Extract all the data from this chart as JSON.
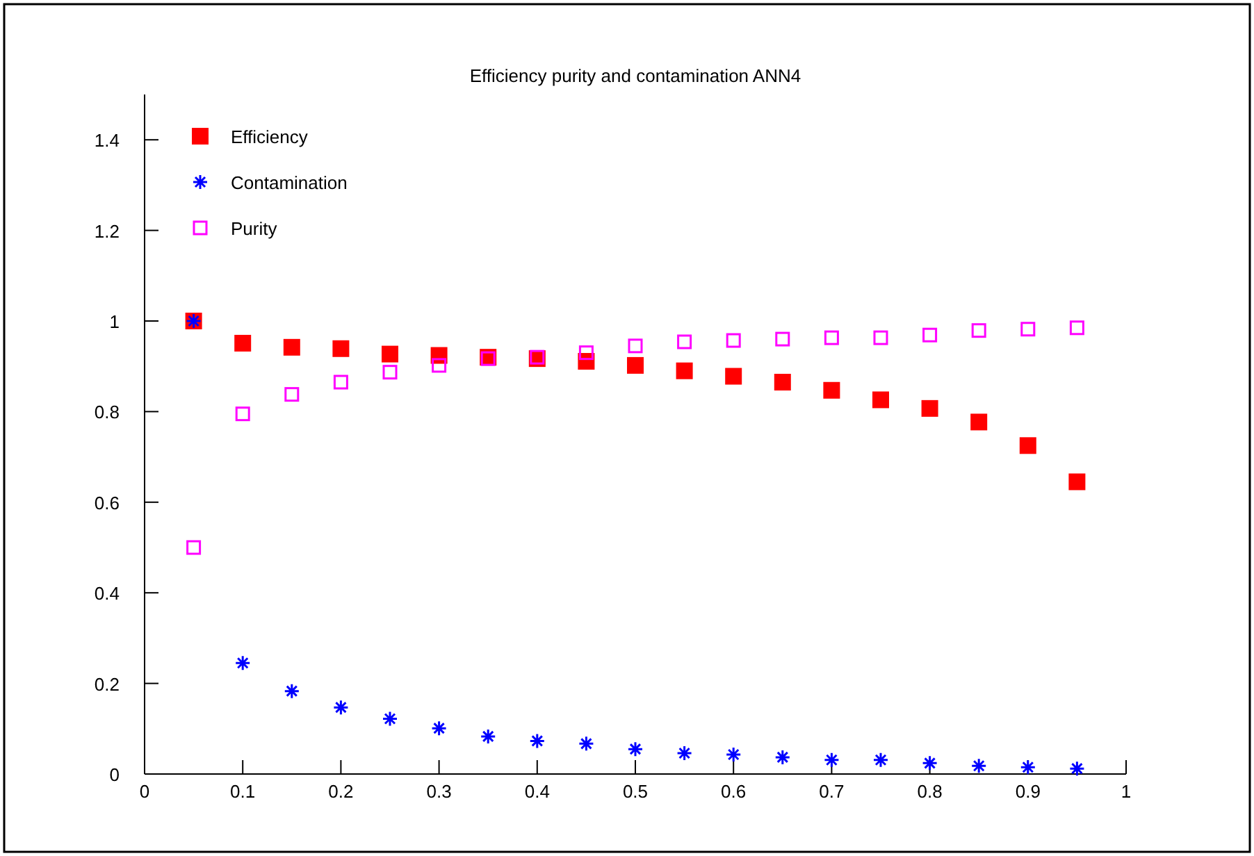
{
  "chart_data": {
    "type": "scatter",
    "title": "Efficiency purity and contamination ANN4",
    "x": [
      0.05,
      0.1,
      0.15,
      0.2,
      0.25,
      0.3,
      0.35,
      0.4,
      0.45,
      0.5,
      0.55,
      0.6,
      0.65,
      0.7,
      0.75,
      0.8,
      0.85,
      0.9,
      0.95
    ],
    "series": [
      {
        "name": "Efficiency",
        "color": "#ff0000",
        "marker": "square",
        "values": [
          1.0,
          0.951,
          0.942,
          0.939,
          0.927,
          0.924,
          0.92,
          0.917,
          0.911,
          0.902,
          0.89,
          0.878,
          0.865,
          0.847,
          0.826,
          0.807,
          0.777,
          0.725,
          0.645
        ]
      },
      {
        "name": "Contamination",
        "color": "#0000ff",
        "marker": "cross",
        "values": [
          1.0,
          0.245,
          0.183,
          0.147,
          0.122,
          0.101,
          0.083,
          0.073,
          0.067,
          0.055,
          0.046,
          0.043,
          0.037,
          0.031,
          0.031,
          0.024,
          0.018,
          0.015,
          0.012
        ]
      },
      {
        "name": "Purity",
        "color": "#ff00ff",
        "marker": "square-open",
        "values": [
          0.5,
          0.795,
          0.838,
          0.865,
          0.887,
          0.902,
          0.917,
          0.92,
          0.93,
          0.945,
          0.954,
          0.957,
          0.96,
          0.963,
          0.963,
          0.969,
          0.979,
          0.982,
          0.985
        ]
      }
    ],
    "xlim": [
      0,
      1
    ],
    "xticks": [
      0,
      0.1,
      0.2,
      0.3,
      0.4,
      0.5,
      0.6,
      0.7,
      0.8,
      0.9,
      1
    ],
    "ylim": [
      0,
      1.5
    ],
    "yticks": [
      0,
      0.2,
      0.4,
      0.6,
      0.8,
      1,
      1.2,
      1.4
    ],
    "grid": false,
    "legend": "top left"
  }
}
